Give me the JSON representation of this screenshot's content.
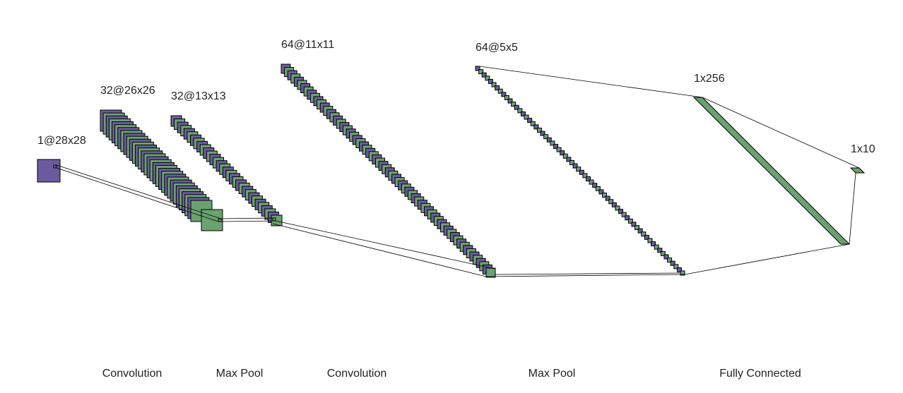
{
  "colors": {
    "purple": "#6b5b9e",
    "green": "#6aa36f",
    "stroke": "#000000"
  },
  "layers": [
    {
      "label": "1@28x28"
    },
    {
      "label": "32@26x26"
    },
    {
      "label": "32@13x13"
    },
    {
      "label": "64@11x11"
    },
    {
      "label": "64@5x5"
    },
    {
      "label": "1x256"
    },
    {
      "label": "1x10"
    }
  ],
  "operations": [
    {
      "label": "Convolution"
    },
    {
      "label": "Max Pool"
    },
    {
      "label": "Convolution"
    },
    {
      "label": "Max Pool"
    },
    {
      "label": "Fully Connected"
    }
  ]
}
